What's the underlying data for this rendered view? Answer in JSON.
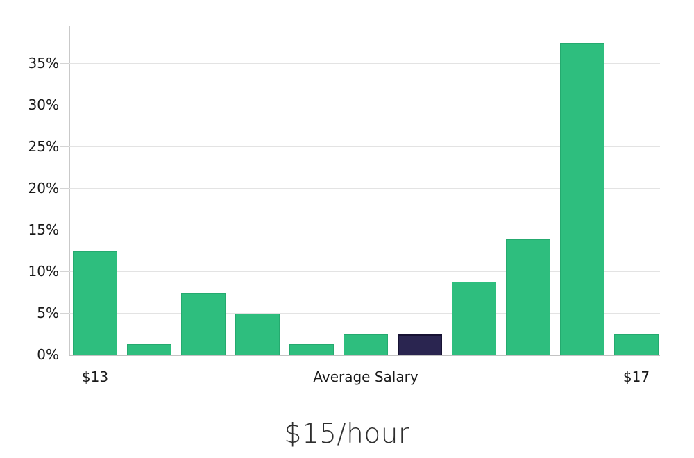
{
  "chart_data": {
    "type": "bar",
    "title": "$15/hour",
    "values": [
      12.5,
      1.3,
      7.5,
      5.0,
      1.3,
      2.5,
      2.5,
      8.8,
      13.9,
      37.5,
      2.5
    ],
    "value_unit": "%",
    "highlight_index": 6,
    "y_axis": {
      "range": [
        0,
        39.5
      ],
      "grid": true,
      "ticks": [
        {
          "value": 0,
          "label": "0%"
        },
        {
          "value": 5,
          "label": "5%"
        },
        {
          "value": 10,
          "label": "10%"
        },
        {
          "value": 15,
          "label": "15%"
        },
        {
          "value": 20,
          "label": "20%"
        },
        {
          "value": 25,
          "label": "25%"
        },
        {
          "value": 30,
          "label": "30%"
        },
        {
          "value": 35,
          "label": "35%"
        }
      ]
    },
    "x_axis": {
      "ticks": [
        {
          "bar_index": 0,
          "label": "$13"
        },
        {
          "bar_index": 5,
          "label": "Average Salary"
        },
        {
          "bar_index": 10,
          "label": "$17"
        }
      ]
    },
    "colors": {
      "bar_fill": "#2ebe7e",
      "bar_border": "#25aa6f",
      "highlight_fill": "#2a2550",
      "highlight_border": "#171233",
      "gridline": "#e3e3e3",
      "tick_mark": "#d4d4d4",
      "axis_line": "#c9c9c9",
      "tick_text": "#1a1a1a",
      "title_text": "#2e2e2e"
    },
    "legend": null
  }
}
